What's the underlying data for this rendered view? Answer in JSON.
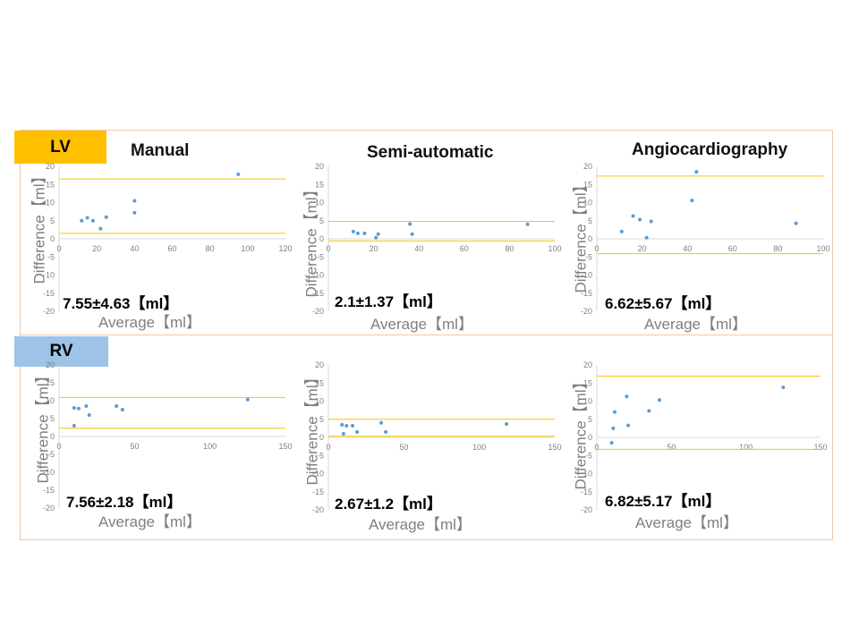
{
  "sections": {
    "lv": {
      "label": "LV",
      "color": "#ffc000"
    },
    "rv": {
      "label": "RV",
      "color": "#9dc3e6"
    }
  },
  "columns": [
    "Manual",
    "Semi-automatic",
    "Angiocardiography"
  ],
  "colors": {
    "point": "#5b9bd5",
    "limit_line": "#ffc000",
    "axis": "#d9d9d9",
    "frame": "#f2c7a8"
  },
  "chart_data": [
    {
      "id": "lv-manual",
      "type": "scatter",
      "section": "LV",
      "method": "Manual",
      "xlabel": "Average【ml】",
      "ylabel": "Difference【ml】",
      "xlim": [
        0,
        120
      ],
      "xticks": [
        0,
        20,
        40,
        60,
        80,
        100,
        120
      ],
      "ylim": [
        -20,
        20
      ],
      "yticks": [
        -20,
        -15,
        -10,
        -5,
        0,
        5,
        10,
        15,
        20
      ],
      "annotation": "7.55±4.63【ml】",
      "points": [
        [
          12,
          5
        ],
        [
          15,
          5.8
        ],
        [
          18,
          5
        ],
        [
          22,
          2.8
        ],
        [
          25,
          6
        ],
        [
          40,
          10.5
        ],
        [
          40,
          7.2
        ],
        [
          95,
          17.8
        ]
      ],
      "limit_lines": [
        16.5,
        1.5
      ]
    },
    {
      "id": "lv-semi",
      "type": "scatter",
      "section": "LV",
      "method": "Semi-automatic",
      "xlabel": "Average【ml】",
      "ylabel": "Difference【ml】",
      "xlim": [
        0,
        100
      ],
      "xticks": [
        0,
        20,
        40,
        60,
        80,
        100
      ],
      "ylim": [
        -20,
        20
      ],
      "yticks": [
        -20,
        -15,
        -10,
        -5,
        0,
        5,
        10,
        15,
        20
      ],
      "annotation": "2.1±1.37【ml】",
      "points": [
        [
          11,
          2
        ],
        [
          13,
          1.5
        ],
        [
          16,
          1.5
        ],
        [
          21,
          0.3
        ],
        [
          22,
          1.3
        ],
        [
          36,
          4.1
        ],
        [
          37,
          1.3
        ],
        [
          88,
          4
        ]
      ],
      "limit_lines": [
        4.8,
        -0.6
      ]
    },
    {
      "id": "lv-angio",
      "type": "scatter",
      "section": "LV",
      "method": "Angiocardiography",
      "xlabel": "Average【ml】",
      "ylabel": "Difference【ml】",
      "xlim": [
        0,
        100
      ],
      "xticks": [
        0,
        20,
        40,
        60,
        80,
        100
      ],
      "ylim": [
        -20,
        20
      ],
      "yticks": [
        -20,
        -15,
        -10,
        -5,
        0,
        5,
        10,
        15,
        20
      ],
      "annotation": "6.62±5.67【ml】",
      "points": [
        [
          11,
          2
        ],
        [
          16,
          6.3
        ],
        [
          19,
          5.3
        ],
        [
          22,
          0.3
        ],
        [
          24,
          4.8
        ],
        [
          42,
          10.6
        ],
        [
          44,
          18.5
        ],
        [
          88,
          4.3
        ]
      ],
      "limit_lines": [
        17.3,
        -4.1
      ]
    },
    {
      "id": "rv-manual",
      "type": "scatter",
      "section": "RV",
      "method": "Manual",
      "xlabel": "Average【ml】",
      "ylabel": "Difference【ml】",
      "xlim": [
        0,
        150
      ],
      "xticks": [
        0,
        50,
        100,
        150
      ],
      "ylim": [
        -20,
        20
      ],
      "yticks": [
        -20,
        -15,
        -10,
        -5,
        0,
        5,
        10,
        15,
        20
      ],
      "annotation": "7.56±2.18【ml】",
      "points": [
        [
          10,
          8
        ],
        [
          13,
          7.8
        ],
        [
          18,
          8.5
        ],
        [
          20,
          6
        ],
        [
          38,
          8.5
        ],
        [
          42,
          7.5
        ],
        [
          125,
          10.3
        ],
        [
          10,
          3
        ]
      ],
      "limit_lines": [
        10.9,
        2.3
      ]
    },
    {
      "id": "rv-semi",
      "type": "scatter",
      "section": "RV",
      "method": "Semi-automatic",
      "xlabel": "Average【ml】",
      "ylabel": "Difference【ml】",
      "xlim": [
        0,
        150
      ],
      "xticks": [
        0,
        50,
        100,
        150
      ],
      "ylim": [
        -20,
        20
      ],
      "yticks": [
        -20,
        -15,
        -10,
        -5,
        0,
        5,
        10,
        15,
        20
      ],
      "annotation": "2.67±1.2【ml】",
      "points": [
        [
          9,
          3.5
        ],
        [
          10,
          1
        ],
        [
          12,
          3.2
        ],
        [
          16,
          3.2
        ],
        [
          19,
          1.5
        ],
        [
          35,
          4
        ],
        [
          38,
          1.5
        ],
        [
          118,
          3.7
        ]
      ],
      "limit_lines": [
        5.0,
        0.3
      ]
    },
    {
      "id": "rv-angio",
      "type": "scatter",
      "section": "RV",
      "method": "Angiocardiography",
      "xlabel": "Average【ml】",
      "ylabel": "Difference【ml】",
      "xlim": [
        0,
        150
      ],
      "xticks": [
        0,
        50,
        100,
        150
      ],
      "ylim": [
        -20,
        20
      ],
      "yticks": [
        -20,
        -15,
        -10,
        -5,
        0,
        5,
        10,
        15,
        20
      ],
      "annotation": "6.82±5.17【ml】",
      "points": [
        [
          10,
          -1.5
        ],
        [
          11,
          2.5
        ],
        [
          12,
          7
        ],
        [
          20,
          11.3
        ],
        [
          21,
          3.3
        ],
        [
          35,
          7.3
        ],
        [
          42,
          10.3
        ],
        [
          125,
          13.8
        ]
      ],
      "limit_lines": [
        16.9,
        -3.3
      ]
    }
  ]
}
